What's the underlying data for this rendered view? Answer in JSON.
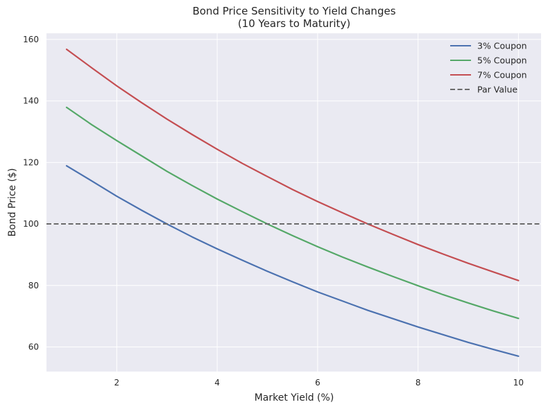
{
  "chart_data": {
    "type": "line",
    "title": "Bond Price Sensitivity to Yield Changes",
    "subtitle": "(10 Years to Maturity)",
    "xlabel": "Market Yield (%)",
    "ylabel": "Bond Price ($)",
    "xlim": [
      0.6,
      10.45
    ],
    "ylim": [
      52,
      162
    ],
    "xticks": [
      2,
      4,
      6,
      8,
      10
    ],
    "yticks": [
      60,
      80,
      100,
      120,
      140,
      160
    ],
    "grid": true,
    "legend_position": "top-right",
    "background_color": "#eaeaf2",
    "series": [
      {
        "name": "3% Coupon",
        "color": "#4c72b0",
        "style": "solid",
        "x": [
          1,
          1.5,
          2,
          2.5,
          3,
          3.5,
          4,
          4.5,
          5,
          5.5,
          6,
          6.5,
          7,
          7.5,
          8,
          8.5,
          9,
          9.5,
          10
        ],
        "y": [
          118.9,
          114.0,
          109.0,
          104.4,
          100.0,
          95.8,
          91.9,
          88.2,
          84.6,
          81.2,
          77.9,
          74.9,
          71.9,
          69.2,
          66.5,
          64.0,
          61.5,
          59.2,
          57.0
        ]
      },
      {
        "name": "5% Coupon",
        "color": "#55a868",
        "style": "solid",
        "x": [
          1,
          1.5,
          2,
          2.5,
          3,
          3.5,
          4,
          4.5,
          5,
          5.5,
          6,
          6.5,
          7,
          7.5,
          8,
          8.5,
          9,
          9.5,
          10
        ],
        "y": [
          137.9,
          132.3,
          127.1,
          122.1,
          117.1,
          112.5,
          108.1,
          104.0,
          100.0,
          96.2,
          92.6,
          89.2,
          86.0,
          82.9,
          79.9,
          77.0,
          74.3,
          71.7,
          69.3
        ]
      },
      {
        "name": "7% Coupon",
        "color": "#c44e52",
        "style": "solid",
        "x": [
          1,
          1.5,
          2,
          2.5,
          3,
          3.5,
          4,
          4.5,
          5,
          5.5,
          6,
          6.5,
          7,
          7.5,
          8,
          8.5,
          9,
          9.5,
          10
        ],
        "y": [
          156.8,
          150.8,
          144.9,
          139.4,
          134.1,
          129.1,
          124.3,
          119.7,
          115.4,
          111.2,
          107.3,
          103.6,
          100.0,
          96.6,
          93.3,
          90.2,
          87.2,
          84.4,
          81.6
        ]
      },
      {
        "name": "Par Value",
        "color": "#6b6b6b",
        "style": "dashed",
        "y_constant": 100
      }
    ]
  }
}
